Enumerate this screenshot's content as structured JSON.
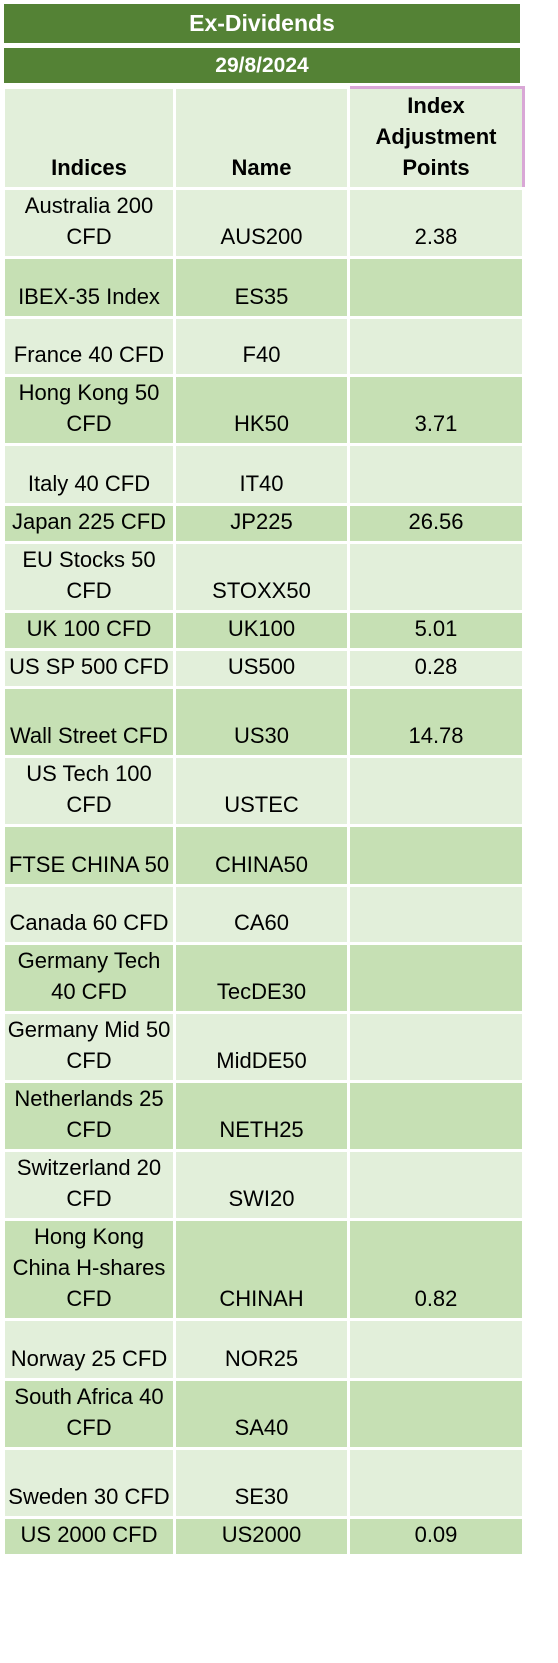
{
  "title": "Ex-Dividends",
  "date": "29/8/2024",
  "headers": {
    "indices": "Indices",
    "name": "Name",
    "points": "Index Adjustment Points"
  },
  "rows": [
    {
      "index": "Australia 200 CFD",
      "name": "AUS200",
      "points": "2.38"
    },
    {
      "index": "IBEX-35 Index",
      "name": "ES35",
      "points": ""
    },
    {
      "index": "France 40 CFD",
      "name": "F40",
      "points": ""
    },
    {
      "index": "Hong Kong 50 CFD",
      "name": "HK50",
      "points": "3.71"
    },
    {
      "index": "Italy 40 CFD",
      "name": "IT40",
      "points": ""
    },
    {
      "index": "Japan 225 CFD",
      "name": "JP225",
      "points": "26.56"
    },
    {
      "index": "EU Stocks 50 CFD",
      "name": "STOXX50",
      "points": ""
    },
    {
      "index": "UK 100 CFD",
      "name": "UK100",
      "points": "5.01"
    },
    {
      "index": "US SP 500 CFD",
      "name": "US500",
      "points": "0.28"
    },
    {
      "index": "Wall Street CFD",
      "name": "US30",
      "points": "14.78"
    },
    {
      "index": "US Tech 100 CFD",
      "name": "USTEC",
      "points": ""
    },
    {
      "index": "FTSE CHINA 50",
      "name": "CHINA50",
      "points": ""
    },
    {
      "index": "Canada 60 CFD",
      "name": "CA60",
      "points": ""
    },
    {
      "index": "Germany Tech 40 CFD",
      "name": "TecDE30",
      "points": ""
    },
    {
      "index": "Germany Mid 50 CFD",
      "name": "MidDE50",
      "points": ""
    },
    {
      "index": "Netherlands 25 CFD",
      "name": "NETH25",
      "points": ""
    },
    {
      "index": "Switzerland 20 CFD",
      "name": "SWI20",
      "points": ""
    },
    {
      "index": "Hong Kong China H-shares CFD",
      "name": "CHINAH",
      "points": "0.82"
    },
    {
      "index": "Norway 25 CFD",
      "name": "NOR25",
      "points": ""
    },
    {
      "index": "South Africa 40 CFD",
      "name": "SA40",
      "points": ""
    },
    {
      "index": "Sweden 30 CFD",
      "name": "SE30",
      "points": ""
    },
    {
      "index": "US 2000 CFD",
      "name": "US2000",
      "points": "0.09"
    }
  ],
  "colors": {
    "header_green": "#548235",
    "row_light": "#e2efda",
    "row_dark": "#c6e0b4"
  }
}
